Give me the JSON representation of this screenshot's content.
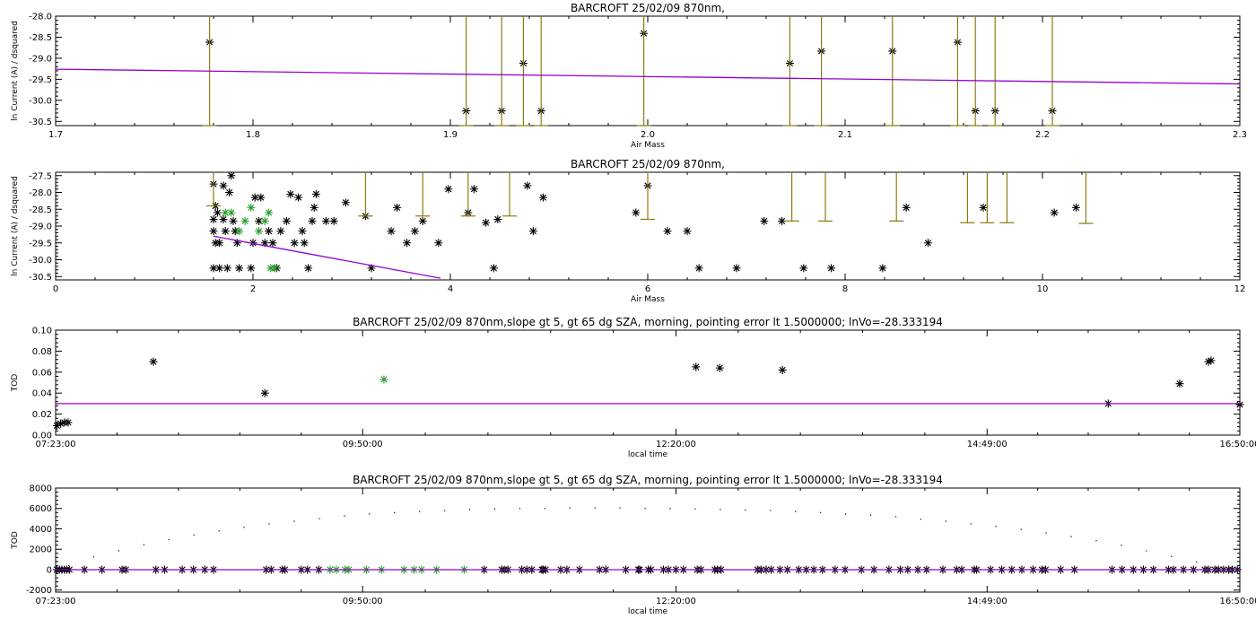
{
  "chart_data": [
    {
      "type": "scatter",
      "title": "BARCROFT 25/02/09 870nm,",
      "xlabel": "Air Mass",
      "ylabel": "ln Current (A) / dsquared",
      "xlim": [
        1.7,
        2.3
      ],
      "ylim": [
        -30.6,
        -28.0
      ],
      "xticks": [
        "1.7",
        "1.8",
        "1.9",
        "2.0",
        "2.1",
        "2.2",
        "2.3"
      ],
      "yticks": [
        "-28.0",
        "-28.5",
        "-29.0",
        "-29.5",
        "-30.0",
        "-30.5"
      ],
      "series": [
        {
          "role": "points",
          "color": "#000000",
          "points": [
            [
              1.778,
              -28.62
            ],
            [
              1.908,
              -30.25
            ],
            [
              1.937,
              -29.12
            ],
            [
              1.926,
              -30.25
            ],
            [
              1.946,
              -30.25
            ],
            [
              1.998,
              -28.41
            ],
            [
              2.072,
              -29.12
            ],
            [
              2.088,
              -28.83
            ],
            [
              2.124,
              -28.83
            ],
            [
              2.157,
              -28.62
            ],
            [
              2.166,
              -30.25
            ],
            [
              2.176,
              -30.25
            ],
            [
              2.205,
              -30.25
            ]
          ]
        },
        {
          "role": "error-bars",
          "color": "#8b7d12",
          "bars": [
            [
              1.778,
              -28.0,
              -30.6
            ],
            [
              1.908,
              -28.0,
              -30.6
            ],
            [
              1.937,
              -28.0,
              -30.6
            ],
            [
              1.926,
              -28.0,
              -30.6
            ],
            [
              1.946,
              -28.0,
              -30.6
            ],
            [
              1.998,
              -28.0,
              -30.6
            ],
            [
              2.072,
              -28.0,
              -30.6
            ],
            [
              2.088,
              -28.0,
              -30.6
            ],
            [
              2.124,
              -28.0,
              -30.6
            ],
            [
              2.157,
              -28.0,
              -30.6
            ],
            [
              2.166,
              -28.0,
              -30.6
            ],
            [
              2.176,
              -28.0,
              -30.6
            ],
            [
              2.205,
              -28.0,
              -30.6
            ]
          ]
        },
        {
          "role": "fit-line",
          "color": "#9400d3",
          "x": [
            1.7,
            2.3
          ],
          "y": [
            -29.26,
            -29.61
          ]
        }
      ]
    },
    {
      "type": "scatter",
      "title": "BARCROFT 25/02/09 870nm,",
      "xlabel": "Air Mass",
      "ylabel": "ln Current (A) / dsquared",
      "xlim": [
        0,
        12
      ],
      "ylim": [
        -30.6,
        -27.4
      ],
      "xticks": [
        "0",
        "2",
        "4",
        "6",
        "8",
        "10",
        "12"
      ],
      "yticks": [
        "-27.5",
        "-28.0",
        "-28.5",
        "-29.0",
        "-29.5",
        "-30.0",
        "-30.5"
      ],
      "series": [
        {
          "role": "points",
          "color": "#000000",
          "points": [
            [
              1.6,
              -27.75
            ],
            [
              1.62,
              -28.4
            ],
            [
              1.64,
              -28.6
            ],
            [
              1.6,
              -28.8
            ],
            [
              1.6,
              -29.15
            ],
            [
              1.62,
              -29.5
            ],
            [
              1.6,
              -30.25
            ],
            [
              1.66,
              -29.5
            ],
            [
              1.66,
              -30.25
            ],
            [
              1.7,
              -27.8
            ],
            [
              1.7,
              -28.8
            ],
            [
              1.72,
              -29.15
            ],
            [
              1.74,
              -30.25
            ],
            [
              1.78,
              -27.5
            ],
            [
              1.76,
              -28.0
            ],
            [
              1.8,
              -28.85
            ],
            [
              1.82,
              -29.15
            ],
            [
              1.84,
              -29.5
            ],
            [
              1.86,
              -30.25
            ],
            [
              1.98,
              -30.25
            ],
            [
              2.0,
              -29.5
            ],
            [
              2.02,
              -28.15
            ],
            [
              2.06,
              -28.85
            ],
            [
              2.08,
              -28.15
            ],
            [
              2.12,
              -29.5
            ],
            [
              2.16,
              -29.15
            ],
            [
              2.2,
              -29.5
            ],
            [
              2.24,
              -30.25
            ],
            [
              2.28,
              -29.15
            ],
            [
              2.34,
              -28.85
            ],
            [
              2.38,
              -28.05
            ],
            [
              2.42,
              -29.5
            ],
            [
              2.46,
              -28.15
            ],
            [
              2.5,
              -29.15
            ],
            [
              2.52,
              -29.5
            ],
            [
              2.56,
              -30.25
            ],
            [
              2.6,
              -28.85
            ],
            [
              2.62,
              -28.45
            ],
            [
              2.64,
              -28.05
            ],
            [
              2.74,
              -28.85
            ],
            [
              2.82,
              -28.85
            ],
            [
              2.94,
              -28.3
            ],
            [
              3.14,
              -28.7
            ],
            [
              3.2,
              -30.25
            ],
            [
              3.4,
              -29.15
            ],
            [
              3.46,
              -28.45
            ],
            [
              3.56,
              -29.5
            ],
            [
              3.64,
              -29.15
            ],
            [
              3.72,
              -28.85
            ],
            [
              3.88,
              -29.5
            ],
            [
              3.98,
              -27.9
            ],
            [
              4.18,
              -28.6
            ],
            [
              4.24,
              -27.9
            ],
            [
              4.36,
              -28.9
            ],
            [
              4.44,
              -30.25
            ],
            [
              4.48,
              -28.8
            ],
            [
              4.78,
              -27.8
            ],
            [
              4.84,
              -29.15
            ],
            [
              4.94,
              -28.15
            ],
            [
              5.88,
              -28.6
            ],
            [
              6.0,
              -27.8
            ],
            [
              6.2,
              -29.15
            ],
            [
              6.4,
              -29.15
            ],
            [
              6.52,
              -30.25
            ],
            [
              6.9,
              -30.25
            ],
            [
              7.18,
              -28.85
            ],
            [
              7.36,
              -28.85
            ],
            [
              7.58,
              -30.25
            ],
            [
              7.86,
              -30.25
            ],
            [
              8.38,
              -30.25
            ],
            [
              8.62,
              -28.45
            ],
            [
              8.84,
              -29.5
            ],
            [
              9.4,
              -28.45
            ],
            [
              10.12,
              -28.6
            ],
            [
              10.34,
              -28.45
            ]
          ]
        },
        {
          "role": "points-selected",
          "color": "#2a9d2a",
          "points": [
            [
              1.72,
              -28.6
            ],
            [
              1.78,
              -28.6
            ],
            [
              1.86,
              -29.15
            ],
            [
              1.92,
              -28.85
            ],
            [
              1.98,
              -28.45
            ],
            [
              2.06,
              -29.15
            ],
            [
              2.12,
              -28.85
            ],
            [
              2.16,
              -28.6
            ],
            [
              2.18,
              -30.25
            ],
            [
              2.22,
              -30.25
            ]
          ]
        },
        {
          "role": "error-bars",
          "color": "#8b7d12",
          "bars": [
            [
              1.6,
              -27.4,
              -28.4
            ],
            [
              3.14,
              -27.4,
              -28.7
            ],
            [
              3.72,
              -27.4,
              -28.7
            ],
            [
              4.18,
              -27.4,
              -28.7
            ],
            [
              4.6,
              -27.4,
              -28.7
            ],
            [
              6.0,
              -27.4,
              -28.8
            ],
            [
              7.46,
              -27.4,
              -28.85
            ],
            [
              7.8,
              -27.4,
              -28.85
            ],
            [
              8.52,
              -27.4,
              -28.85
            ],
            [
              9.24,
              -27.4,
              -28.9
            ],
            [
              9.44,
              -27.4,
              -28.9
            ],
            [
              9.64,
              -27.4,
              -28.9
            ],
            [
              10.44,
              -27.4,
              -28.92
            ]
          ]
        },
        {
          "role": "fit-line",
          "color": "#9400d3",
          "x": [
            1.6,
            3.9
          ],
          "y": [
            -29.3,
            -30.55
          ]
        }
      ]
    },
    {
      "type": "scatter",
      "title": "BARCROFT 25/02/09 870nm,slope gt 5, gt 65 dg SZA, morning, pointing error lt 1.5000000; lnVo=-28.333194",
      "xlabel": "local time",
      "ylabel": "TOD",
      "xlim": [
        0,
        9.45
      ],
      "ylim": [
        0,
        0.1
      ],
      "xticks": [
        "07:23:00",
        "09:50:00",
        "12:20:00",
        "14:49:00",
        "16:50:00"
      ],
      "xtick_positions": [
        0,
        2.45,
        4.95,
        7.433,
        9.45
      ],
      "yticks": [
        "0.00",
        "0.02",
        "0.04",
        "0.06",
        "0.08",
        "0.10"
      ],
      "series": [
        {
          "role": "points",
          "color": "#000000",
          "points": [
            [
              0.01,
              0.009
            ],
            [
              0.04,
              0.011
            ],
            [
              0.07,
              0.012
            ],
            [
              0.1,
              0.012
            ],
            [
              0.78,
              0.07
            ],
            [
              1.67,
              0.04
            ],
            [
              5.11,
              0.065
            ],
            [
              5.3,
              0.064
            ],
            [
              5.8,
              0.062
            ],
            [
              8.4,
              0.03
            ],
            [
              8.97,
              0.049
            ],
            [
              9.2,
              0.07
            ],
            [
              9.22,
              0.071
            ],
            [
              9.45,
              0.029
            ]
          ]
        },
        {
          "role": "points-selected",
          "color": "#2a9d2a",
          "points": [
            [
              2.62,
              0.053
            ]
          ]
        },
        {
          "role": "reference-line",
          "color": "#9400d3",
          "x": [
            0,
            9.45
          ],
          "y": [
            0.03,
            0.03
          ]
        }
      ]
    },
    {
      "type": "scatter",
      "title": "BARCROFT 25/02/09 870nm,slope gt 5, gt 65 dg SZA, morning, pointing error lt 1.5000000; lnVo=-28.333194",
      "xlabel": "local time",
      "ylabel": "TOD",
      "xlim": [
        0,
        9.45
      ],
      "ylim": [
        -2200,
        8000
      ],
      "xticks": [
        "07:23:00",
        "09:50:00",
        "12:20:00",
        "14:49:00",
        "16:50:00"
      ],
      "xtick_positions": [
        0,
        2.45,
        4.95,
        7.433,
        9.45
      ],
      "yticks": [
        "-2000",
        "0",
        "2000",
        "4000",
        "6000",
        "8000"
      ],
      "series": [
        {
          "role": "points",
          "color": "#000000",
          "y_constant": 0,
          "x": [
            0.01,
            0.03,
            0.05,
            0.07,
            0.09,
            0.11,
            0.23,
            0.37,
            0.53,
            0.56,
            0.8,
            0.87,
            1.01,
            1.1,
            1.19,
            1.26,
            1.68,
            1.72,
            1.81,
            1.83,
            1.96,
            2.01,
            2.1,
            3.42,
            3.56,
            3.58,
            3.61,
            3.72,
            3.76,
            3.8,
            3.88,
            3.89,
            3.91,
            4.03,
            4.08,
            4.18,
            4.34,
            4.39,
            4.55,
            4.65,
            4.66,
            4.73,
            4.75,
            4.85,
            4.89,
            4.95,
            5.01,
            5.12,
            5.15,
            5.26,
            5.28,
            5.31,
            5.6,
            5.63,
            5.67,
            5.71,
            5.78,
            5.84,
            5.93,
            5.99,
            6.05,
            6.12,
            6.22,
            6.3,
            6.43,
            6.53,
            6.65,
            6.74,
            6.8,
            6.88,
            6.95,
            7.08,
            7.19,
            7.23,
            7.33,
            7.35,
            7.46,
            7.55,
            7.63,
            7.71,
            7.8,
            7.87,
            7.9,
            8.02,
            8.13,
            8.43,
            8.51,
            8.6,
            8.68,
            8.76,
            8.88,
            8.92,
            9.0,
            9.08,
            9.17,
            9.2,
            9.25,
            9.28,
            9.32,
            9.36,
            9.39,
            9.43
          ]
        },
        {
          "role": "points-selected",
          "color": "#2a9d2a",
          "y_constant": 0,
          "x": [
            2.19,
            2.24,
            2.31,
            2.34,
            2.48,
            2.6,
            2.78,
            2.86,
            2.92,
            3.04,
            3.26
          ]
        },
        {
          "role": "airmass-dots",
          "color": "#000000",
          "x": [
            0.1,
            0.3,
            0.5,
            0.7,
            0.9,
            1.1,
            1.3,
            1.5,
            1.7,
            1.9,
            2.1,
            2.3,
            2.5,
            2.7,
            2.9,
            3.1,
            3.3,
            3.5,
            3.7,
            3.9,
            4.1,
            4.3,
            4.5,
            4.7,
            4.9,
            5.1,
            5.3,
            5.5,
            5.7,
            5.9,
            6.1,
            6.3,
            6.5,
            6.7,
            6.9,
            7.1,
            7.3,
            7.5,
            7.7,
            7.9,
            8.1,
            8.3,
            8.5,
            8.7,
            8.9,
            9.1,
            9.3
          ],
          "y": [
            450,
            1300,
            1900,
            2500,
            3000,
            3450,
            3850,
            4200,
            4550,
            4800,
            5050,
            5300,
            5500,
            5650,
            5750,
            5850,
            5950,
            6000,
            6050,
            6050,
            6100,
            6100,
            6100,
            6050,
            6050,
            6000,
            5950,
            5900,
            5850,
            5750,
            5650,
            5500,
            5400,
            5250,
            5000,
            4800,
            4550,
            4300,
            4000,
            3650,
            3300,
            2900,
            2450,
            1900,
            1350,
            800,
            300
          ]
        },
        {
          "role": "reference-line",
          "color": "#9400d3",
          "x": [
            0,
            9.45
          ],
          "y": [
            0,
            0
          ]
        }
      ]
    }
  ]
}
